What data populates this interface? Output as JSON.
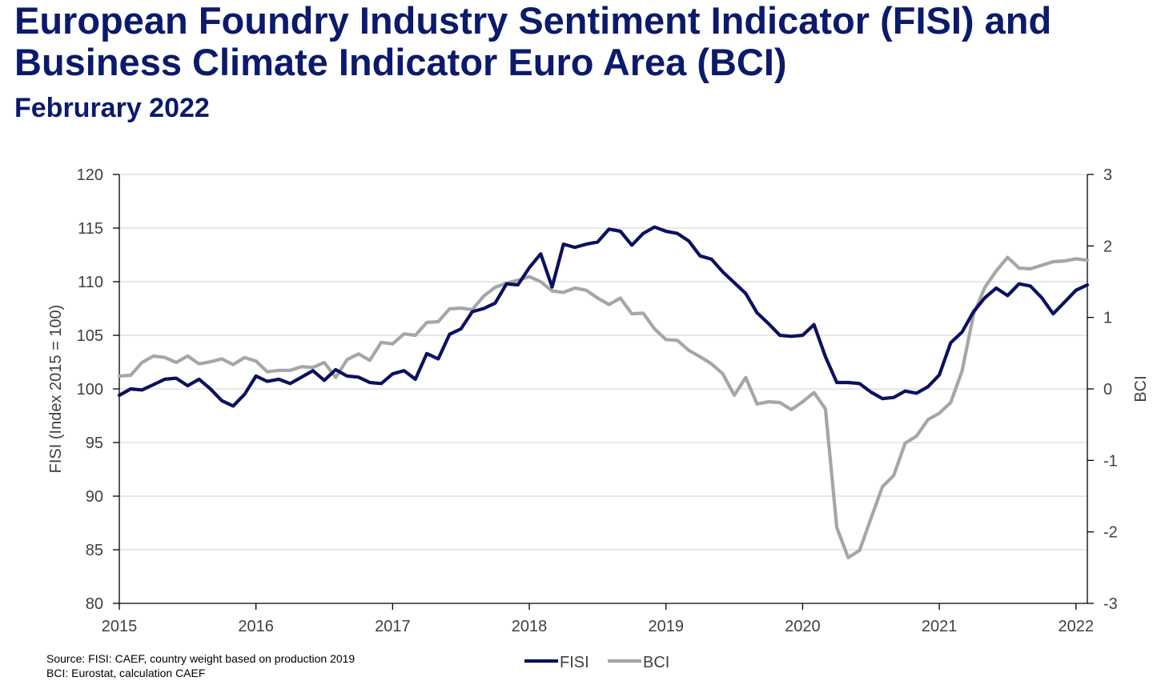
{
  "title_line1": "European Foundry Industry Sentiment Indicator (FISI) and",
  "title_line2": "Business Climate Indicator Euro Area (BCI)",
  "subtitle": "Februrary 2022",
  "source_line1": "Source: FISI: CAEF, country weight based on production 2019",
  "source_line2": "BCI: Eurostat, calculation CAEF",
  "chart_data": {
    "type": "line",
    "title": "European Foundry Industry Sentiment Indicator (FISI) and Business Climate Indicator Euro Area (BCI)",
    "subtitle": "Februrary 2022",
    "xlabel": "",
    "ylabel": "FISI (Index 2015 = 100)",
    "y2label": "BCI",
    "x_ticks": [
      "2015",
      "2016",
      "2017",
      "2018",
      "2019",
      "2020",
      "2021",
      "2022"
    ],
    "xlim": [
      "2015-01",
      "2022-02"
    ],
    "ylim": [
      80,
      120
    ],
    "y_ticks": [
      "80",
      "85",
      "90",
      "95",
      "100",
      "105",
      "110",
      "115",
      "120"
    ],
    "y2lim": [
      -3,
      3
    ],
    "y2_ticks": [
      "-3",
      "-2",
      "-1",
      "0",
      "1",
      "2",
      "3"
    ],
    "grid": "horizontal",
    "legend_position": "bottom",
    "x_dates": [
      "2015-01",
      "2015-02",
      "2015-03",
      "2015-04",
      "2015-05",
      "2015-06",
      "2015-07",
      "2015-08",
      "2015-09",
      "2015-10",
      "2015-11",
      "2015-12",
      "2016-01",
      "2016-02",
      "2016-03",
      "2016-04",
      "2016-05",
      "2016-06",
      "2016-07",
      "2016-08",
      "2016-09",
      "2016-10",
      "2016-11",
      "2016-12",
      "2017-01",
      "2017-02",
      "2017-03",
      "2017-04",
      "2017-05",
      "2017-06",
      "2017-07",
      "2017-08",
      "2017-09",
      "2017-10",
      "2017-11",
      "2017-12",
      "2018-01",
      "2018-02",
      "2018-03",
      "2018-04",
      "2018-05",
      "2018-06",
      "2018-07",
      "2018-08",
      "2018-09",
      "2018-10",
      "2018-11",
      "2018-12",
      "2019-01",
      "2019-02",
      "2019-03",
      "2019-04",
      "2019-05",
      "2019-06",
      "2019-07",
      "2019-08",
      "2019-09",
      "2019-10",
      "2019-11",
      "2019-12",
      "2020-01",
      "2020-02",
      "2020-03",
      "2020-04",
      "2020-05",
      "2020-06",
      "2020-07",
      "2020-08",
      "2020-09",
      "2020-10",
      "2020-11",
      "2020-12",
      "2021-01",
      "2021-02",
      "2021-03",
      "2021-04",
      "2021-05",
      "2021-06",
      "2021-07",
      "2021-08",
      "2021-09",
      "2021-10",
      "2021-11",
      "2021-12",
      "2022-01",
      "2022-02"
    ],
    "series": [
      {
        "name": "FISI",
        "axis": "left",
        "color": "#0b1060",
        "values": [
          99.4,
          100.0,
          99.9,
          100.4,
          100.9,
          101.0,
          100.3,
          100.9,
          100.0,
          98.9,
          98.4,
          99.5,
          101.2,
          100.7,
          100.9,
          100.5,
          101.1,
          101.7,
          100.8,
          101.8,
          101.2,
          101.1,
          100.6,
          100.5,
          101.4,
          101.7,
          100.9,
          103.3,
          102.8,
          105.1,
          105.6,
          107.2,
          107.5,
          108.0,
          109.8,
          109.7,
          111.3,
          112.6,
          109.5,
          113.5,
          113.2,
          113.5,
          113.7,
          114.9,
          114.7,
          113.4,
          114.5,
          115.1,
          114.7,
          114.5,
          113.8,
          112.4,
          112.1,
          110.9,
          109.9,
          108.9,
          107.1,
          106.1,
          105.0,
          104.9,
          105.0,
          106.0,
          103.0,
          100.6,
          100.6,
          100.5,
          99.7,
          99.1,
          99.2,
          99.8,
          99.6,
          100.2,
          101.3,
          104.3,
          105.3,
          107.2,
          108.5,
          109.4,
          108.7,
          109.8,
          109.6,
          108.5,
          107.0,
          108.1,
          109.2,
          109.7
        ]
      },
      {
        "name": "BCI",
        "axis": "right",
        "color": "#a6a6a6",
        "values": [
          0.18,
          0.19,
          0.37,
          0.46,
          0.44,
          0.37,
          0.46,
          0.35,
          0.38,
          0.42,
          0.34,
          0.44,
          0.39,
          0.24,
          0.26,
          0.26,
          0.31,
          0.3,
          0.37,
          0.16,
          0.41,
          0.49,
          0.4,
          0.65,
          0.63,
          0.77,
          0.75,
          0.93,
          0.94,
          1.12,
          1.13,
          1.11,
          1.3,
          1.42,
          1.48,
          1.52,
          1.57,
          1.5,
          1.37,
          1.35,
          1.41,
          1.38,
          1.27,
          1.18,
          1.27,
          1.05,
          1.06,
          0.84,
          0.69,
          0.68,
          0.54,
          0.45,
          0.35,
          0.21,
          -0.09,
          0.16,
          -0.21,
          -0.18,
          -0.19,
          -0.29,
          -0.18,
          -0.05,
          -0.28,
          -1.94,
          -2.36,
          -2.26,
          -1.81,
          -1.37,
          -1.21,
          -0.76,
          -0.66,
          -0.43,
          -0.34,
          -0.19,
          0.25,
          1.04,
          1.42,
          1.65,
          1.84,
          1.69,
          1.68,
          1.73,
          1.78,
          1.79,
          1.82,
          1.8
        ]
      }
    ]
  }
}
